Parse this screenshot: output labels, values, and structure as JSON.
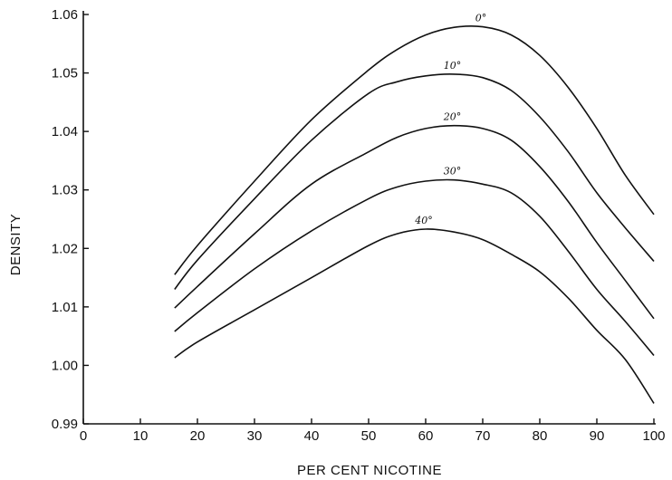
{
  "chart_data": {
    "type": "line",
    "title": "",
    "xlabel": "PER CENT NICOTINE",
    "ylabel": "DENSITY",
    "xlim": [
      0,
      100
    ],
    "ylim": [
      0.99,
      1.06
    ],
    "x_ticks": [
      0,
      10,
      20,
      30,
      40,
      50,
      60,
      70,
      80,
      90,
      100
    ],
    "x_tick_labels": [
      "0",
      "10",
      "20",
      "30",
      "40",
      "50",
      "60",
      "70",
      "80",
      "90",
      "100"
    ],
    "y_ticks": [
      0.99,
      1.0,
      1.01,
      1.02,
      1.03,
      1.04,
      1.05,
      1.06
    ],
    "y_tick_labels": [
      "0.99",
      "1.00",
      "1.01",
      "1.02",
      "1.03",
      "1.04",
      "1.05",
      "1.06"
    ],
    "grid": false,
    "legend": "none",
    "series": [
      {
        "name": "0°",
        "x": [
          16,
          20,
          30,
          40,
          50,
          55,
          60,
          65,
          70,
          75,
          80,
          85,
          90,
          95,
          100
        ],
        "y": [
          1.0155,
          1.0205,
          1.0315,
          1.042,
          1.0505,
          1.054,
          1.0565,
          1.0578,
          1.0579,
          1.0565,
          1.053,
          1.0475,
          1.0405,
          1.0325,
          1.0258
        ]
      },
      {
        "name": "10°",
        "x": [
          16,
          20,
          30,
          40,
          50,
          55,
          60,
          65,
          70,
          75,
          80,
          85,
          90,
          95,
          100
        ],
        "y": [
          1.013,
          1.018,
          1.0285,
          1.0385,
          1.0465,
          1.0485,
          1.0495,
          1.0498,
          1.0492,
          1.047,
          1.0425,
          1.0365,
          1.0295,
          1.0235,
          1.0178
        ]
      },
      {
        "name": "20°",
        "x": [
          16,
          20,
          30,
          40,
          50,
          55,
          60,
          65,
          70,
          75,
          80,
          85,
          90,
          95,
          100
        ],
        "y": [
          1.0098,
          1.0135,
          1.0225,
          1.031,
          1.0365,
          1.039,
          1.0405,
          1.041,
          1.0405,
          1.0385,
          1.034,
          1.028,
          1.021,
          1.0145,
          1.008
        ]
      },
      {
        "name": "30°",
        "x": [
          16,
          20,
          30,
          40,
          50,
          55,
          60,
          65,
          70,
          75,
          80,
          85,
          90,
          95,
          100
        ],
        "y": [
          1.0058,
          1.009,
          1.0165,
          1.023,
          1.0285,
          1.0305,
          1.0315,
          1.0317,
          1.031,
          1.0295,
          1.0255,
          1.0195,
          1.013,
          1.0075,
          1.0017
        ]
      },
      {
        "name": "40°",
        "x": [
          16,
          20,
          30,
          40,
          50,
          55,
          60,
          65,
          70,
          75,
          80,
          85,
          90,
          95,
          100
        ],
        "y": [
          1.0013,
          1.004,
          1.0095,
          1.015,
          1.0205,
          1.0225,
          1.0233,
          1.0228,
          1.0215,
          1.019,
          1.016,
          1.0115,
          1.006,
          1.001,
          0.9935
        ]
      }
    ],
    "curve_labels": [
      {
        "series": "0°",
        "text": "0°"
      },
      {
        "series": "10°",
        "text": "10°"
      },
      {
        "series": "20°",
        "text": "20°"
      },
      {
        "series": "30°",
        "text": "30°"
      },
      {
        "series": "40°",
        "text": "40°"
      }
    ]
  }
}
